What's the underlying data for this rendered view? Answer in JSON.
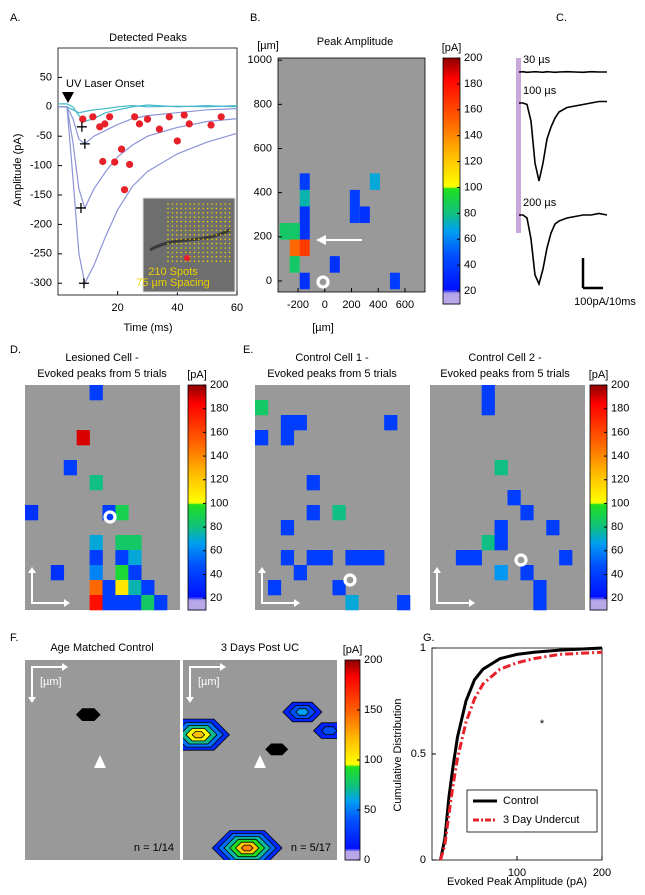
{
  "chart_data": [
    {
      "type": "line",
      "panel": "A.",
      "title": "Detected Peaks",
      "x_label": "Time (ms)",
      "y_label": "Amplitude (pA)",
      "xlim": [
        0,
        60
      ],
      "ylim": [
        -320,
        100
      ],
      "xticks": [
        20,
        40,
        60
      ],
      "yticks": [
        50,
        0,
        -50,
        -100,
        -150,
        -200,
        -250,
        -300
      ],
      "annotation": "UV Laser Onset",
      "inset_text": [
        "210 Spots",
        "75 µm Spacing"
      ],
      "x": [
        0,
        3,
        5,
        7,
        9,
        12,
        16,
        20,
        25,
        30,
        40,
        50,
        60
      ],
      "series": [
        {
          "color": "#45b8cc",
          "values": [
            0,
            0,
            -5,
            -10,
            -8,
            -5,
            -3,
            0,
            2,
            0,
            1,
            0,
            2
          ]
        },
        {
          "color": "#45b8cc",
          "values": [
            5,
            5,
            0,
            -15,
            -25,
            -20,
            -10,
            -5,
            0,
            3,
            0,
            2,
            0
          ]
        },
        {
          "color": "#8c94d6",
          "values": [
            0,
            0,
            -20,
            -55,
            -63,
            -50,
            -40,
            -30,
            -20,
            -15,
            -10,
            -5,
            -3
          ]
        },
        {
          "color": "#8c94d6",
          "values": [
            0,
            0,
            -60,
            -140,
            -172,
            -140,
            -110,
            -85,
            -65,
            -50,
            -35,
            -25,
            -20
          ]
        },
        {
          "color": "#8c94d6",
          "values": [
            0,
            0,
            -120,
            -250,
            -300,
            -270,
            -220,
            -175,
            -135,
            -110,
            -80,
            -60,
            -45
          ]
        }
      ],
      "peaks": {
        "color": "#e8202a",
        "x": [
          8.3,
          11.7,
          14,
          17.3,
          21.3,
          22.3,
          24,
          27.3,
          30,
          34,
          37.3,
          40,
          42.3,
          44,
          51.3,
          54.7,
          15,
          19,
          15.7,
          25.7
        ],
        "values": [
          -21,
          -17,
          -34,
          -17,
          -72,
          -141,
          -98,
          -29,
          -21,
          -38,
          -17,
          -58,
          -14,
          -29,
          -31,
          -17,
          -93,
          -94,
          -29,
          -17
        ]
      },
      "onsets": {
        "color": "#000000",
        "x": [
          8.7,
          7.7,
          9,
          8
        ],
        "values": [
          -300,
          -172,
          -63,
          -34
        ]
      }
    },
    {
      "type": "heatmap",
      "panel": "B.",
      "title": "Peak Amplitude",
      "x_label": "[µm]",
      "y_label": "[µm]",
      "colorbar_label": "[pA]",
      "xlim": [
        -350,
        750
      ],
      "ylim": [
        -50,
        1010
      ],
      "xticks": [
        -200,
        0,
        200,
        400,
        600
      ],
      "yticks": [
        0,
        200,
        400,
        600,
        800,
        1000
      ],
      "clim": [
        10,
        200
      ],
      "cticks": [
        20,
        40,
        60,
        80,
        100,
        120,
        140,
        160,
        180,
        200
      ],
      "cell_size": 75,
      "cells": {
        "x": [
          -150,
          -150,
          -150,
          -150,
          -225,
          -300,
          -225,
          -150,
          -225,
          -150,
          75,
          225,
          225,
          300,
          375,
          525
        ],
        "y": [
          450,
          375,
          300,
          225,
          225,
          225,
          150,
          150,
          75,
          0,
          75,
          375,
          300,
          300,
          450,
          0
        ],
        "values": [
          40,
          75,
          35,
          35,
          85,
          85,
          150,
          165,
          85,
          35,
          35,
          40,
          40,
          35,
          70,
          40
        ]
      }
    },
    {
      "type": "traces",
      "panel": "C.",
      "x": [
        0,
        2,
        4,
        6,
        8,
        10,
        12,
        14,
        16,
        18,
        20,
        24,
        28,
        32,
        36,
        40,
        44
      ],
      "series": [
        {
          "name": "30 µs",
          "color": "#000000",
          "values": [
            0,
            1,
            -1,
            0,
            1,
            0,
            -1,
            1,
            0,
            -1,
            0,
            1,
            0,
            -1,
            1,
            0,
            0
          ]
        },
        {
          "name": "100 µs",
          "color": "#000000",
          "values": [
            0,
            0,
            -5,
            -60,
            -200,
            -260,
            -200,
            -120,
            -80,
            -50,
            -30,
            -15,
            -10,
            -5,
            0,
            5,
            5
          ]
        },
        {
          "name": "200 µs",
          "color": "#000000",
          "values": [
            0,
            0,
            -10,
            -80,
            -200,
            -230,
            -180,
            -110,
            -60,
            -30,
            -20,
            -10,
            -5,
            0,
            0,
            5,
            0
          ]
        }
      ],
      "scalebar": {
        "x": 10,
        "y": 100,
        "label": "100pA/10ms"
      },
      "stimulus_color": "#c9a8dc"
    },
    {
      "type": "grid",
      "panel": "D.",
      "title": [
        "Lesioned Cell -",
        "Evoked peaks from 5 trials"
      ],
      "colorbar_label": "[pA]",
      "clim": [
        10,
        200
      ],
      "cticks": [
        20,
        40,
        60,
        80,
        100,
        120,
        140,
        160,
        180,
        200
      ],
      "cols": 12,
      "rows": 15,
      "cells": {
        "col": [
          5,
          4,
          3,
          5,
          0,
          6,
          7,
          5,
          7,
          8,
          5,
          7,
          8,
          2,
          5,
          7,
          8,
          5,
          6,
          7,
          8,
          9,
          5,
          6,
          7,
          8,
          9,
          10
        ],
        "row": [
          0,
          3,
          5,
          6,
          8,
          8,
          8,
          10,
          10,
          10,
          11,
          11,
          11,
          12,
          12,
          12,
          12,
          13,
          13,
          13,
          13,
          13,
          14,
          14,
          14,
          14,
          14,
          14
        ],
        "values": [
          40,
          190,
          40,
          80,
          35,
          40,
          90,
          70,
          85,
          85,
          40,
          40,
          70,
          35,
          60,
          95,
          40,
          150,
          40,
          110,
          75,
          40,
          180,
          40,
          40,
          40,
          85,
          40
        ]
      }
    },
    {
      "type": "grid",
      "panel": "E.",
      "title": [
        "Control Cell 1 -",
        "Evoked peaks from 5 trials"
      ],
      "clim": [
        10,
        200
      ],
      "cols": 12,
      "rows": 15,
      "cells": {
        "col": [
          0,
          0,
          2,
          2,
          3,
          10,
          4,
          4,
          6,
          2,
          4,
          2,
          5,
          7,
          8,
          9,
          3,
          1,
          6,
          7,
          11
        ],
        "row": [
          1,
          3,
          2,
          3,
          2,
          2,
          6,
          8,
          8,
          9,
          11,
          11,
          11,
          11,
          11,
          11,
          12,
          13,
          13,
          14,
          14
        ],
        "values": [
          85,
          40,
          40,
          40,
          40,
          40,
          40,
          40,
          80,
          40,
          40,
          40,
          40,
          40,
          40,
          40,
          40,
          40,
          40,
          70,
          40
        ]
      }
    },
    {
      "type": "grid",
      "title": [
        "Control Cell 2 -",
        "Evoked peaks from 5 trials"
      ],
      "colorbar_label": "[pA]",
      "clim": [
        10,
        200
      ],
      "cticks": [
        20,
        40,
        60,
        80,
        100,
        120,
        140,
        160,
        180,
        200
      ],
      "cols": 12,
      "rows": 15,
      "cells": {
        "col": [
          4,
          4,
          5,
          6,
          7,
          5,
          9,
          4,
          5,
          2,
          3,
          10,
          5,
          7,
          8,
          8
        ],
        "row": [
          0,
          1,
          5,
          7,
          8,
          9,
          9,
          10,
          10,
          11,
          11,
          11,
          12,
          12,
          13,
          14
        ],
        "values": [
          40,
          40,
          80,
          40,
          40,
          40,
          40,
          80,
          40,
          40,
          40,
          40,
          65,
          40,
          40,
          40
        ]
      }
    },
    {
      "type": "contour",
      "panel": "F.",
      "title": "Age Matched Control",
      "unit_label": "[µm]",
      "note": "n = 1/14",
      "clim": [
        0,
        200
      ],
      "cols": 12,
      "rows": 15,
      "spots": {
        "col": [
          4.9
        ],
        "row": [
          4.1
        ],
        "values": [
          20
        ]
      }
    },
    {
      "type": "contour",
      "title": "3 Days Post UC",
      "unit_label": "[µm]",
      "note": "n = 5/17",
      "colorbar_label": "[pA]",
      "clim": [
        0,
        200
      ],
      "cticks": [
        0,
        50,
        100,
        150,
        200
      ],
      "cols": 12,
      "rows": 15,
      "spots": {
        "col": [
          9.3,
          11.4,
          1.2,
          7.3,
          5.0
        ],
        "row": [
          3.9,
          5.3,
          5.6,
          6.7,
          14.1
        ],
        "values": [
          60,
          40,
          120,
          15,
          140
        ]
      }
    },
    {
      "type": "line",
      "panel": "G.",
      "x_label": "Evoked Peak Amplitude (pA)",
      "y_label": "Cumulative Distribution",
      "annotation": "*",
      "xlim": [
        0,
        200
      ],
      "ylim": [
        0,
        1
      ],
      "xticks": [
        100,
        200
      ],
      "yticks": [
        0,
        0.5,
        1
      ],
      "legend": "lower right",
      "x": [
        10,
        15,
        20,
        25,
        30,
        40,
        50,
        60,
        80,
        100,
        120,
        150,
        200
      ],
      "series": [
        {
          "name": "Control",
          "color": "#000000",
          "values": [
            0,
            0.1,
            0.3,
            0.45,
            0.58,
            0.75,
            0.85,
            0.9,
            0.95,
            0.97,
            0.98,
            0.99,
            1
          ]
        },
        {
          "name": "3 Day Undercut",
          "color": "#e8202a",
          "line_style": "dash-dot",
          "values": [
            0,
            0.07,
            0.22,
            0.36,
            0.48,
            0.65,
            0.76,
            0.83,
            0.9,
            0.93,
            0.95,
            0.97,
            0.98
          ]
        }
      ]
    }
  ]
}
